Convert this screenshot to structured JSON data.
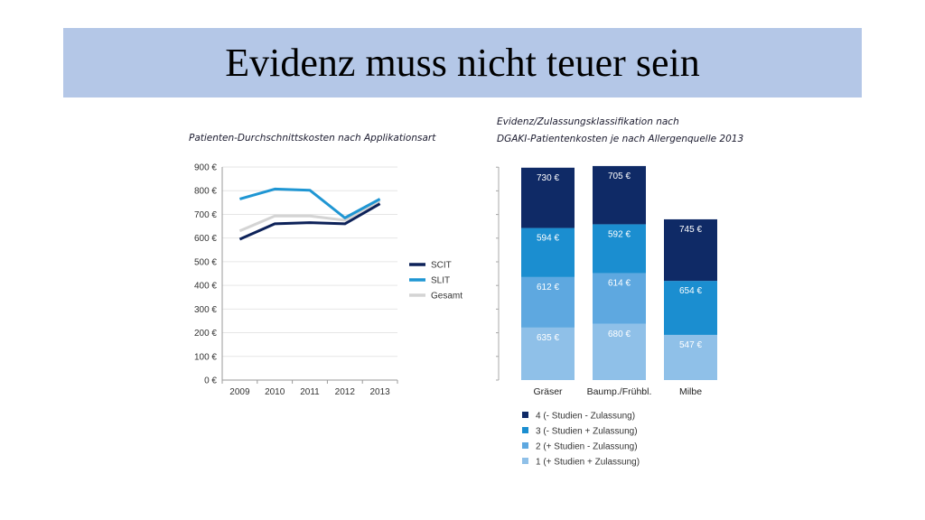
{
  "slide": {
    "title": "Evidenz muss nicht teuer sein",
    "title_bar_color": "#b4c7e7"
  },
  "chart_data": [
    {
      "type": "line",
      "title": "Patienten-Durchschnittskosten nach Applikationsart",
      "x": [
        "2009",
        "2010",
        "2011",
        "2012",
        "2013"
      ],
      "y_ticks": [
        "0 €",
        "100 €",
        "200 €",
        "300 €",
        "400 €",
        "500 €",
        "600 €",
        "700 €",
        "800 €",
        "900 €"
      ],
      "ylim": [
        0,
        900
      ],
      "grid": true,
      "legend_position": "right",
      "series": [
        {
          "name": "SCIT",
          "color": "#0d2259",
          "values": [
            595,
            660,
            665,
            660,
            745
          ]
        },
        {
          "name": "SLIT",
          "color": "#1f96d3",
          "values": [
            765,
            807,
            802,
            685,
            765
          ]
        },
        {
          "name": "Gesamt",
          "color": "#d4d4d4",
          "values": [
            630,
            693,
            693,
            675,
            758
          ]
        }
      ]
    },
    {
      "type": "bar",
      "stacked": true,
      "title_lines": [
        "Evidenz/Zulassungsklassifikation nach",
        "DGAKI-Patientenkosten je nach Allergenquelle 2013"
      ],
      "categories": [
        "Gräser",
        "Baump./Frühbl.",
        "Milbe"
      ],
      "legend_position": "bottom",
      "series": [
        {
          "name": "1 (+ Studien + Zulassung)",
          "color": "#8fc0e8",
          "values": [
            635,
            680,
            547
          ],
          "labels": [
            "635 €",
            "680 €",
            "547 €"
          ]
        },
        {
          "name": "2 (+ Studien - Zulassung)",
          "color": "#5ea8e0",
          "values": [
            612,
            614,
            null
          ],
          "labels": [
            "612 €",
            "614 €",
            ""
          ]
        },
        {
          "name": "3 (- Studien + Zulassung)",
          "color": "#1b8ed0",
          "values": [
            594,
            592,
            654
          ],
          "labels": [
            "594 €",
            "592 €",
            "654 €"
          ]
        },
        {
          "name": "4 (- Studien - Zulassung)",
          "color": "#0f2a66",
          "values": [
            730,
            705,
            745
          ],
          "labels": [
            "730 €",
            "705 €",
            "745 €"
          ]
        }
      ]
    }
  ]
}
